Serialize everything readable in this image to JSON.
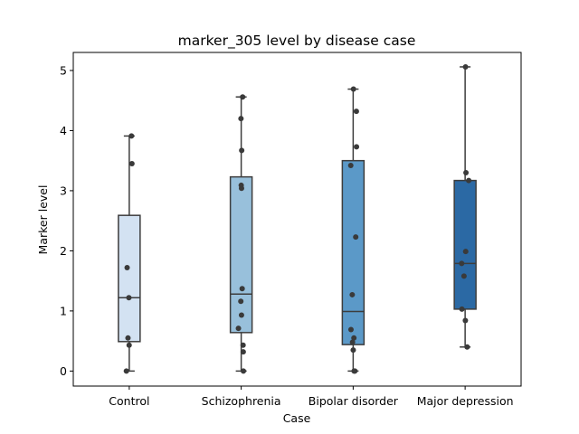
{
  "chart_data": {
    "type": "box",
    "title": "marker_305 level by disease case",
    "xlabel": "Case",
    "ylabel": "Marker level",
    "categories": [
      "Control",
      "Schizophrenia",
      "Bipolar disorder",
      "Major depression"
    ],
    "ylim": [
      -0.25,
      5.3
    ],
    "yticks": [
      0,
      1,
      2,
      3,
      4,
      5
    ],
    "grid": false,
    "colors": [
      "#d3e2f2",
      "#98c0db",
      "#5b99c8",
      "#2b69a4"
    ],
    "boxes": [
      {
        "category": "Control",
        "min": 0.0,
        "q1": 0.49,
        "median": 1.22,
        "q3": 2.59,
        "max": 3.91,
        "points": [
          0.0,
          0.43,
          0.55,
          1.22,
          1.72,
          3.45,
          3.91
        ]
      },
      {
        "category": "Schizophrenia",
        "min": 0.0,
        "q1": 0.64,
        "median": 1.28,
        "q3": 3.23,
        "max": 4.56,
        "points": [
          0.0,
          0.32,
          0.43,
          0.71,
          0.93,
          1.16,
          1.37,
          3.04,
          3.09,
          3.67,
          4.2,
          4.56
        ]
      },
      {
        "category": "Bipolar disorder",
        "min": 0.0,
        "q1": 0.44,
        "median": 0.99,
        "q3": 3.5,
        "max": 4.69,
        "points": [
          0.0,
          0.0,
          0.35,
          0.48,
          0.55,
          0.69,
          1.27,
          2.23,
          3.42,
          3.73,
          4.32,
          4.69
        ]
      },
      {
        "category": "Major depression",
        "min": 0.4,
        "q1": 1.03,
        "median": 1.79,
        "q3": 3.17,
        "max": 5.06,
        "points": [
          0.4,
          0.84,
          1.03,
          1.58,
          1.79,
          1.99,
          3.17,
          3.3,
          5.06
        ]
      }
    ]
  }
}
